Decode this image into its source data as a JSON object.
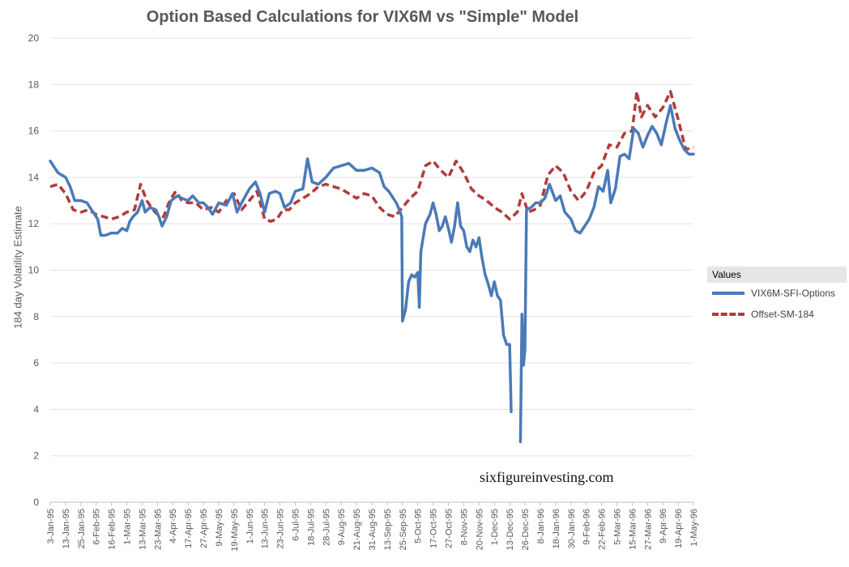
{
  "chart_data": {
    "type": "line",
    "title": "Option Based Calculations for VIX6M vs \"Simple\" Model",
    "xlabel": "",
    "ylabel": "184 day Volatility Estimate",
    "ylim": [
      0,
      20
    ],
    "yticks": [
      0,
      2,
      4,
      6,
      8,
      10,
      12,
      14,
      16,
      18,
      20
    ],
    "grid": true,
    "legend_title": "Values",
    "legend_position": "right",
    "x_tick_labels": [
      "3-Jan-95",
      "13-Jan-95",
      "25-Jan-95",
      "6-Feb-95",
      "16-Feb-95",
      "1-Mar-95",
      "13-Mar-95",
      "23-Mar-95",
      "4-Apr-95",
      "17-Apr-95",
      "27-Apr-95",
      "9-May-95",
      "19-May-95",
      "1-Jun-95",
      "13-Jun-95",
      "23-Jun-95",
      "6-Jul-95",
      "18-Jul-95",
      "28-Jul-95",
      "9-Aug-95",
      "21-Aug-95",
      "31-Aug-95",
      "13-Sep-95",
      "25-Sep-95",
      "5-Oct-95",
      "17-Oct-95",
      "27-Oct-95",
      "8-Nov-95",
      "20-Nov-95",
      "1-Dec-95",
      "13-Dec-95",
      "26-Dec-95",
      "8-Jan-96",
      "18-Jan-96",
      "30-Jan-96",
      "9-Feb-96",
      "22-Feb-96",
      "5-Mar-96",
      "15-Mar-96",
      "27-Mar-96",
      "9-Apr-96",
      "19-Apr-96",
      "1-May-96"
    ],
    "series": [
      {
        "name": "VIX6M-SFI-Options",
        "color": "#4a7ab8",
        "style": "solid",
        "points": [
          [
            0,
            14.7
          ],
          [
            0.5,
            14.2
          ],
          [
            1,
            14.0
          ],
          [
            1.3,
            13.6
          ],
          [
            1.6,
            13.0
          ],
          [
            2,
            13.0
          ],
          [
            2.4,
            12.9
          ],
          [
            2.8,
            12.5
          ],
          [
            3.1,
            12.2
          ],
          [
            3.3,
            11.5
          ],
          [
            3.6,
            11.5
          ],
          [
            4,
            11.6
          ],
          [
            4.4,
            11.6
          ],
          [
            4.7,
            11.8
          ],
          [
            5,
            11.7
          ],
          [
            5.2,
            12.1
          ],
          [
            5.4,
            12.3
          ],
          [
            5.7,
            12.5
          ],
          [
            6,
            13.0
          ],
          [
            6.2,
            12.5
          ],
          [
            6.5,
            12.7
          ],
          [
            6.9,
            12.6
          ],
          [
            7.1,
            12.3
          ],
          [
            7.3,
            11.9
          ],
          [
            7.6,
            12.3
          ],
          [
            7.9,
            13.0
          ],
          [
            8.3,
            13.2
          ],
          [
            8.6,
            13.1
          ],
          [
            9,
            13.0
          ],
          [
            9.3,
            13.2
          ],
          [
            9.7,
            12.9
          ],
          [
            10,
            12.9
          ],
          [
            10.3,
            12.7
          ],
          [
            10.6,
            12.4
          ],
          [
            11,
            12.9
          ],
          [
            11.5,
            12.8
          ],
          [
            11.9,
            13.3
          ],
          [
            12.2,
            12.5
          ],
          [
            12.5,
            12.9
          ],
          [
            13,
            13.5
          ],
          [
            13.4,
            13.8
          ],
          [
            13.7,
            13.3
          ],
          [
            14,
            12.5
          ],
          [
            14.3,
            13.3
          ],
          [
            14.7,
            13.4
          ],
          [
            15,
            13.3
          ],
          [
            15.3,
            12.7
          ],
          [
            15.7,
            12.9
          ],
          [
            16,
            13.4
          ],
          [
            16.5,
            13.5
          ],
          [
            16.8,
            14.8
          ],
          [
            17.1,
            13.8
          ],
          [
            17.5,
            13.7
          ],
          [
            18,
            14.0
          ],
          [
            18.5,
            14.4
          ],
          [
            19,
            14.5
          ],
          [
            19.5,
            14.6
          ],
          [
            20,
            14.3
          ],
          [
            20.5,
            14.3
          ],
          [
            21,
            14.4
          ],
          [
            21.5,
            14.2
          ],
          [
            21.8,
            13.6
          ],
          [
            22.1,
            13.4
          ],
          [
            22.4,
            13.1
          ],
          [
            22.6,
            12.9
          ],
          [
            22.8,
            12.6
          ],
          [
            22.95,
            12.3
          ],
          [
            23,
            7.8
          ],
          [
            23.2,
            8.3
          ],
          [
            23.4,
            9.5
          ],
          [
            23.6,
            9.8
          ],
          [
            23.8,
            9.7
          ],
          [
            24,
            9.9
          ],
          [
            24.1,
            8.4
          ],
          [
            24.2,
            10.8
          ],
          [
            24.5,
            12.0
          ],
          [
            24.8,
            12.4
          ],
          [
            25,
            12.9
          ],
          [
            25.2,
            12.4
          ],
          [
            25.4,
            11.7
          ],
          [
            25.6,
            11.9
          ],
          [
            25.8,
            12.3
          ],
          [
            26,
            11.8
          ],
          [
            26.2,
            11.2
          ],
          [
            26.4,
            11.9
          ],
          [
            26.6,
            12.9
          ],
          [
            26.8,
            11.9
          ],
          [
            27,
            11.7
          ],
          [
            27.2,
            11.0
          ],
          [
            27.4,
            10.8
          ],
          [
            27.6,
            11.3
          ],
          [
            27.8,
            11.0
          ],
          [
            28,
            11.4
          ],
          [
            28.2,
            10.5
          ],
          [
            28.4,
            9.8
          ],
          [
            28.6,
            9.4
          ],
          [
            28.8,
            8.9
          ],
          [
            29,
            9.5
          ],
          [
            29.2,
            8.9
          ],
          [
            29.4,
            8.7
          ],
          [
            29.6,
            7.2
          ],
          [
            29.8,
            6.8
          ],
          [
            30,
            6.8
          ],
          [
            30.1,
            3.9
          ]
        ],
        "points_b": [
          [
            30.7,
            2.6
          ],
          [
            30.8,
            8.1
          ],
          [
            30.9,
            5.9
          ],
          [
            31.0,
            6.6
          ],
          [
            31.1,
            12.6
          ],
          [
            31.4,
            12.7
          ],
          [
            31.7,
            12.9
          ],
          [
            32,
            12.9
          ],
          [
            32.3,
            13.1
          ],
          [
            32.6,
            13.7
          ],
          [
            33,
            13.0
          ],
          [
            33.3,
            13.2
          ],
          [
            33.6,
            12.5
          ],
          [
            34,
            12.2
          ],
          [
            34.3,
            11.7
          ],
          [
            34.6,
            11.6
          ],
          [
            34.9,
            11.9
          ],
          [
            35.2,
            12.2
          ],
          [
            35.5,
            12.7
          ],
          [
            35.8,
            13.6
          ],
          [
            36.1,
            13.4
          ],
          [
            36.4,
            14.3
          ],
          [
            36.6,
            12.9
          ],
          [
            36.9,
            13.5
          ],
          [
            37.2,
            14.9
          ],
          [
            37.5,
            15.0
          ],
          [
            37.8,
            14.8
          ],
          [
            38.1,
            16.1
          ],
          [
            38.4,
            15.9
          ],
          [
            38.7,
            15.3
          ],
          [
            39,
            15.8
          ],
          [
            39.3,
            16.2
          ],
          [
            39.6,
            15.9
          ],
          [
            39.9,
            15.4
          ],
          [
            40.2,
            16.3
          ],
          [
            40.5,
            17.1
          ],
          [
            40.8,
            16.1
          ],
          [
            41.1,
            15.6
          ],
          [
            41.4,
            15.2
          ],
          [
            41.7,
            15.0
          ],
          [
            42,
            15.0
          ]
        ]
      },
      {
        "name": "Offset-SM-184",
        "color": "#b23b3b",
        "style": "dashed",
        "points": [
          [
            0,
            13.6
          ],
          [
            0.5,
            13.7
          ],
          [
            1,
            13.3
          ],
          [
            1.5,
            12.6
          ],
          [
            2,
            12.5
          ],
          [
            2.5,
            12.6
          ],
          [
            3,
            12.4
          ],
          [
            3.5,
            12.3
          ],
          [
            4,
            12.2
          ],
          [
            4.5,
            12.3
          ],
          [
            5,
            12.5
          ],
          [
            5.5,
            12.6
          ],
          [
            5.9,
            13.7
          ],
          [
            6.3,
            13.0
          ],
          [
            6.7,
            12.6
          ],
          [
            7,
            12.4
          ],
          [
            7.4,
            12.3
          ],
          [
            7.8,
            13.0
          ],
          [
            8.2,
            13.4
          ],
          [
            8.6,
            13.0
          ],
          [
            9,
            12.9
          ],
          [
            9.5,
            12.9
          ],
          [
            10,
            12.6
          ],
          [
            10.5,
            12.7
          ],
          [
            11,
            12.5
          ],
          [
            11.5,
            13.0
          ],
          [
            12,
            13.3
          ],
          [
            12.5,
            12.6
          ],
          [
            13,
            13.0
          ],
          [
            13.5,
            13.4
          ],
          [
            14,
            12.2
          ],
          [
            14.4,
            12.1
          ],
          [
            14.8,
            12.2
          ],
          [
            15.2,
            12.6
          ],
          [
            15.6,
            12.6
          ],
          [
            16,
            12.9
          ],
          [
            16.5,
            13.1
          ],
          [
            17,
            13.3
          ],
          [
            17.5,
            13.6
          ],
          [
            18,
            13.7
          ],
          [
            18.5,
            13.6
          ],
          [
            19,
            13.5
          ],
          [
            19.5,
            13.3
          ],
          [
            20,
            13.1
          ],
          [
            20.5,
            13.3
          ],
          [
            21,
            13.2
          ],
          [
            21.5,
            12.7
          ],
          [
            22,
            12.4
          ],
          [
            22.5,
            12.3
          ],
          [
            23,
            12.7
          ],
          [
            23.5,
            13.1
          ],
          [
            24,
            13.4
          ],
          [
            24.5,
            14.5
          ],
          [
            25,
            14.7
          ],
          [
            25.5,
            14.3
          ],
          [
            26,
            14.0
          ],
          [
            26.5,
            14.7
          ],
          [
            27,
            14.2
          ],
          [
            27.5,
            13.5
          ],
          [
            28,
            13.2
          ],
          [
            28.5,
            13.0
          ],
          [
            29,
            12.7
          ],
          [
            29.5,
            12.5
          ],
          [
            30,
            12.2
          ],
          [
            30.5,
            12.5
          ],
          [
            30.8,
            13.3
          ],
          [
            31.2,
            12.5
          ],
          [
            31.6,
            12.6
          ],
          [
            32,
            12.8
          ],
          [
            32.5,
            14.1
          ],
          [
            33,
            14.5
          ],
          [
            33.5,
            14.2
          ],
          [
            34,
            13.4
          ],
          [
            34.5,
            13.0
          ],
          [
            35,
            13.4
          ],
          [
            35.5,
            14.2
          ],
          [
            36,
            14.5
          ],
          [
            36.5,
            15.4
          ],
          [
            37,
            15.3
          ],
          [
            37.5,
            15.9
          ],
          [
            38,
            16.0
          ],
          [
            38.3,
            17.7
          ],
          [
            38.6,
            16.6
          ],
          [
            39,
            17.1
          ],
          [
            39.5,
            16.6
          ],
          [
            40,
            17.0
          ],
          [
            40.5,
            17.7
          ],
          [
            41,
            16.5
          ],
          [
            41.5,
            15.2
          ],
          [
            42,
            15.3
          ]
        ]
      }
    ]
  },
  "watermark": "sixfigureinvesting.com"
}
